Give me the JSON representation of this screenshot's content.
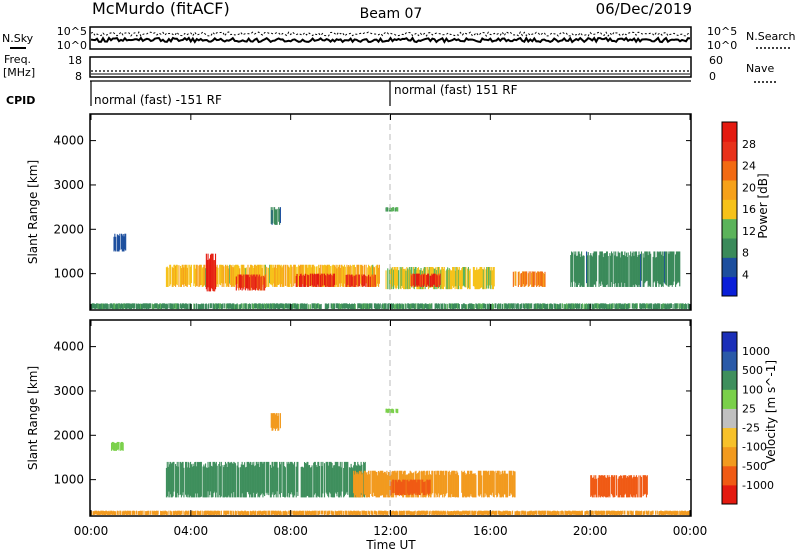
{
  "header": {
    "station": "McMurdo (fitACF)",
    "beam": "Beam 07",
    "date": "06/Dec/2019"
  },
  "side_labels": {
    "nsky": "N.Sky",
    "freq_line1": "Freq.",
    "freq_line2": "[MHz]",
    "cpid": "CPID",
    "nsearch": "N.Search",
    "nave": "Nave"
  },
  "cpid_segments": [
    {
      "label": "normal (fast) -151 RF",
      "start_hour": 0
    },
    {
      "label": "normal (fast) 151 RF",
      "start_hour": 12
    }
  ],
  "noise_panel": {
    "left_ticks": [
      "10^5",
      "10^0"
    ],
    "right_ticks": [
      "10^5",
      "10^0"
    ]
  },
  "freq_panel": {
    "left_ticks": [
      "18",
      "8"
    ],
    "right_ticks": [
      "60",
      "0"
    ]
  },
  "colors": {
    "power": [
      "#0a1fd8",
      "#1d4f9e",
      "#3a8a5a",
      "#5bb35a",
      "#f6c21a",
      "#f6a11a",
      "#f26a12",
      "#e8311a",
      "#e41a10"
    ],
    "velocity": [
      "#e41a10",
      "#f05a14",
      "#f29a1e",
      "#f7c12a",
      "#c0c0c0",
      "#7ad04a",
      "#3f8f5d",
      "#2a5aa8",
      "#1b2fb8"
    ]
  },
  "chart_data": [
    {
      "type": "heatmap",
      "quantity": "power",
      "ylabel": "Slant Range [km]",
      "xlabel": "Time UT",
      "x_ticks": [
        "00:00",
        "04:00",
        "08:00",
        "12:00",
        "16:00",
        "20:00",
        "00:00"
      ],
      "x_range_hours": [
        0,
        24
      ],
      "y_ticks": [
        1000,
        2000,
        3000,
        4000
      ],
      "ylim": [
        180,
        4600
      ],
      "colorbar_label": "Power [dB]",
      "colorbar_ticks": [
        "4",
        "8",
        "12",
        "16",
        "20",
        "24",
        "28"
      ],
      "colorbar_range": [
        0,
        30
      ],
      "echo_regions": [
        {
          "t0": 0.0,
          "t1": 24.0,
          "r0": 200,
          "r1": 330,
          "value": 9
        },
        {
          "t0": 3.0,
          "t1": 11.6,
          "r0": 700,
          "r1": 1200,
          "value": 16
        },
        {
          "t0": 4.6,
          "t1": 5.0,
          "r0": 600,
          "r1": 1450,
          "value": 27
        },
        {
          "t0": 5.8,
          "t1": 7.0,
          "r0": 620,
          "r1": 980,
          "value": 25
        },
        {
          "t0": 8.2,
          "t1": 9.8,
          "r0": 700,
          "r1": 1000,
          "value": 27
        },
        {
          "t0": 10.2,
          "t1": 11.4,
          "r0": 700,
          "r1": 980,
          "value": 24
        },
        {
          "t0": 11.8,
          "t1": 16.2,
          "r0": 650,
          "r1": 1150,
          "value": 14
        },
        {
          "t0": 12.8,
          "t1": 14.0,
          "r0": 700,
          "r1": 1000,
          "value": 26
        },
        {
          "t0": 16.9,
          "t1": 18.2,
          "r0": 700,
          "r1": 1050,
          "value": 20
        },
        {
          "t0": 19.2,
          "t1": 23.6,
          "r0": 700,
          "r1": 1500,
          "value": 8
        },
        {
          "t0": 0.9,
          "t1": 1.4,
          "r0": 1500,
          "r1": 1900,
          "value": 5
        },
        {
          "t0": 7.2,
          "t1": 7.6,
          "r0": 2100,
          "r1": 2500,
          "value": 7
        },
        {
          "t0": 11.8,
          "t1": 12.3,
          "r0": 2400,
          "r1": 2500,
          "value": 11
        }
      ]
    },
    {
      "type": "heatmap",
      "quantity": "velocity",
      "ylabel": "Slant Range [km]",
      "xlabel": "Time UT",
      "x_ticks": [
        "00:00",
        "04:00",
        "08:00",
        "12:00",
        "16:00",
        "20:00",
        "00:00"
      ],
      "x_range_hours": [
        0,
        24
      ],
      "y_ticks": [
        1000,
        2000,
        3000,
        4000
      ],
      "ylim": [
        180,
        4600
      ],
      "colorbar_label": "Velocity [m s^-1]",
      "colorbar_ticks": [
        "-1000",
        "-500",
        "-100",
        "-25",
        "25",
        "100",
        "500",
        "1000"
      ],
      "echo_regions": [
        {
          "t0": 0.0,
          "t1": 24.0,
          "r0": 200,
          "r1": 300,
          "value": -150
        },
        {
          "t0": 3.0,
          "t1": 11.0,
          "r0": 600,
          "r1": 1400,
          "value": 300
        },
        {
          "t0": 10.5,
          "t1": 17.0,
          "r0": 600,
          "r1": 1200,
          "value": -200
        },
        {
          "t0": 12.0,
          "t1": 13.6,
          "r0": 650,
          "r1": 1000,
          "value": -600
        },
        {
          "t0": 20.0,
          "t1": 22.3,
          "r0": 600,
          "r1": 1100,
          "value": -700
        },
        {
          "t0": 0.8,
          "t1": 1.3,
          "r0": 1650,
          "r1": 1850,
          "value": 80
        },
        {
          "t0": 7.2,
          "t1": 7.6,
          "r0": 2100,
          "r1": 2500,
          "value": -200
        },
        {
          "t0": 11.8,
          "t1": 12.3,
          "r0": 2500,
          "r1": 2600,
          "value": 80
        }
      ]
    }
  ]
}
